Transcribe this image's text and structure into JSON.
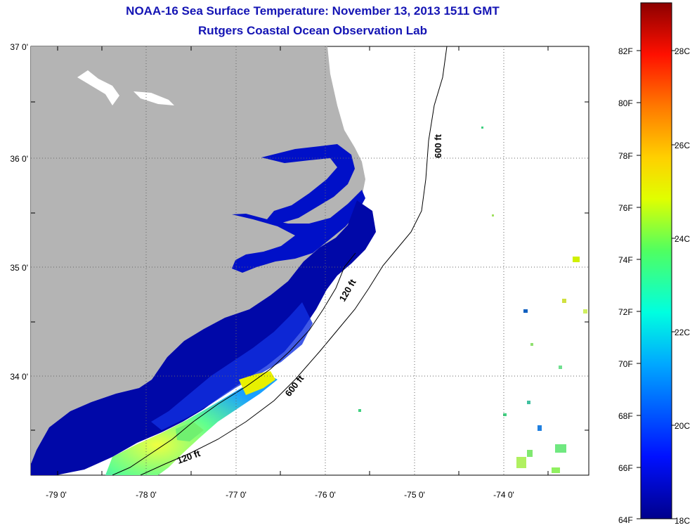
{
  "title": "NOAA-16 Sea Surface Temperature:  November 13, 2013 1511 GMT",
  "subtitle": "Rutgers Coastal Ocean Observation Lab",
  "lat_labels": [
    "37 0'",
    "36 0'",
    "35 0'",
    "34 0'"
  ],
  "lon_labels": [
    "-79 0'",
    "-78 0'",
    "-77 0'",
    "-76 0'",
    "-75 0'",
    "-74 0'"
  ],
  "colorbar": {
    "fahrenheit": [
      "82F",
      "80F",
      "78F",
      "76F",
      "74F",
      "72F",
      "70F",
      "68F",
      "66F",
      "64F"
    ],
    "celsius": [
      "28C",
      "26C",
      "24C",
      "22C",
      "20C",
      "18C"
    ]
  },
  "contours": [
    "600 ft",
    "120 ft",
    "600 ft",
    "120 ft"
  ],
  "colors": {
    "title": "#1414b4",
    "land": "#b4b4b4",
    "cold": "#00008c",
    "ocean_nodata": "#ffffff"
  }
}
